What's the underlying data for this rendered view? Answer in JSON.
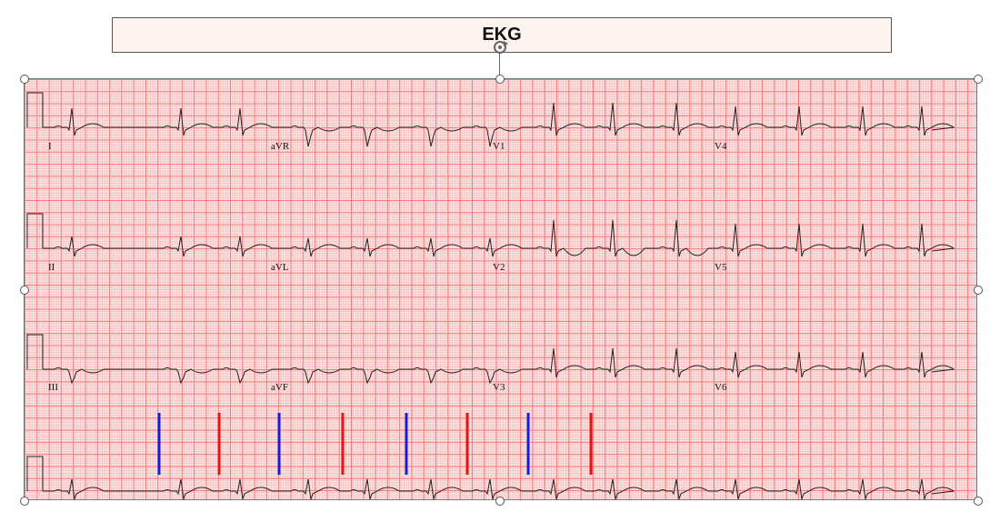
{
  "title": "EKG",
  "leads": {
    "row1": [
      "I",
      "aVR",
      "V1",
      "V4"
    ],
    "row2": [
      "II",
      "aVL",
      "V2",
      "V5"
    ],
    "row3": [
      "III",
      "aVF",
      "V3",
      "V6"
    ]
  },
  "markers": {
    "blue_color": "#1a1adf",
    "red_color": "#ee1111",
    "sequence": [
      "blue",
      "red",
      "blue",
      "red",
      "blue",
      "red",
      "blue",
      "red"
    ]
  },
  "icons": {
    "rotate": "rotate-icon",
    "handle": "resize-handle"
  }
}
